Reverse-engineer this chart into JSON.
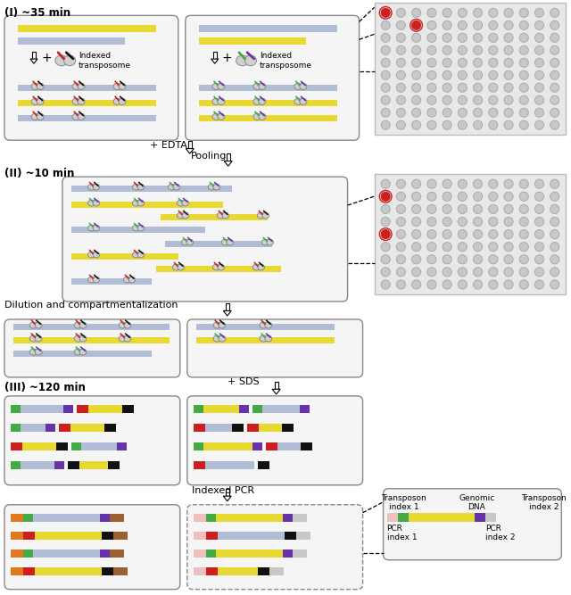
{
  "bg_color": "#ffffff",
  "colors": {
    "yellow": "#e8d832",
    "blue_light": "#b0bdd4",
    "gray_well": "#c8c8c8",
    "gray_plate": "#e0e0e0",
    "red": "#cc2020",
    "green": "#44aa44",
    "black": "#111111",
    "purple": "#6633aa",
    "orange": "#e07820",
    "pink": "#f0c0c0",
    "brown": "#9a6030",
    "white": "#ffffff",
    "box_bg": "#f5f5f5",
    "box_edge": "#888888"
  },
  "label_i": "(I) ~35 min",
  "label_ii": "(II) ~10 min",
  "label_iii": "(III) ~120 min",
  "text_edta": "+ EDTA",
  "text_pooling": "Pooling",
  "text_sds": "+ SDS",
  "text_pcr": "Indexed PCR",
  "text_dilution": "Dilution and compartmentalization",
  "text_transposome": "Indexed\ntransposome",
  "legend_col1_title": "Transposon\nindex 1",
  "legend_col2_title": "Genomic\nDNA",
  "legend_col3_title": "Transposon\nindex 2",
  "legend_pcr1": "PCR\nindex 1",
  "legend_pcr2": "PCR\nindex 2"
}
